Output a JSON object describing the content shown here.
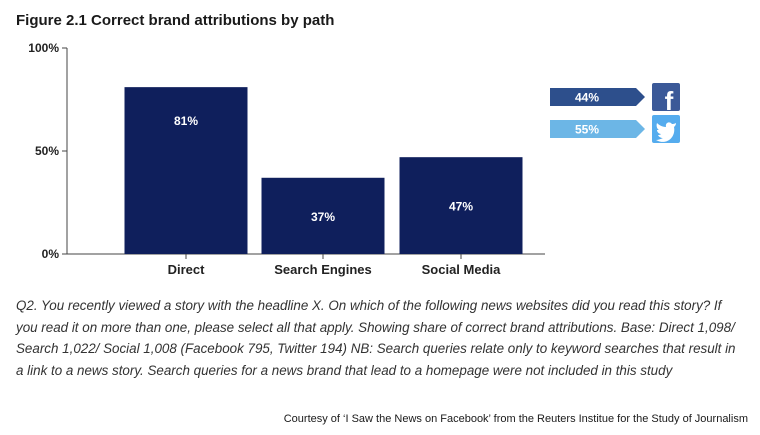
{
  "title": "Figure 2.1 Correct brand attributions by path",
  "colors": {
    "bar": "#0f1f5c",
    "axis": "#444444",
    "facebook_arrow": "#2d4f8c",
    "twitter_arrow": "#6cb6e6",
    "facebook_brand": "#3b5998",
    "twitter_brand": "#55acee"
  },
  "chart_data": {
    "type": "bar",
    "title": "Figure 2.1 Correct brand attributions by path",
    "categories": [
      "Direct",
      "Search Engines",
      "Social Media"
    ],
    "values": [
      81,
      37,
      47
    ],
    "data_labels": [
      "81%",
      "37%",
      "47%"
    ],
    "ylim": [
      0,
      100
    ],
    "yticks": [
      "100%",
      "50%",
      "0%"
    ],
    "ytick_values": [
      100,
      50,
      0
    ],
    "grid": false,
    "annotations": [
      {
        "label": "44%",
        "icon": "facebook-icon"
      },
      {
        "label": "55%",
        "icon": "twitter-icon"
      }
    ]
  },
  "notes": "Q2. You recently viewed a story with the headline X. On which of the following news websites did you read this story? If you read it on more than one, please select all that apply. Showing share of correct brand attributions. Base: Direct 1,098/ Search 1,022/ Social 1,008 (Facebook 795, Twitter 194) NB: Search queries relate only to keyword searches that result in a link to a news story. Search queries for a news brand that lead to a homepage were not included in this study",
  "credit": "Courtesy of ‘I Saw the News on Facebook’ from the Reuters Institue for the Study of Journalism"
}
